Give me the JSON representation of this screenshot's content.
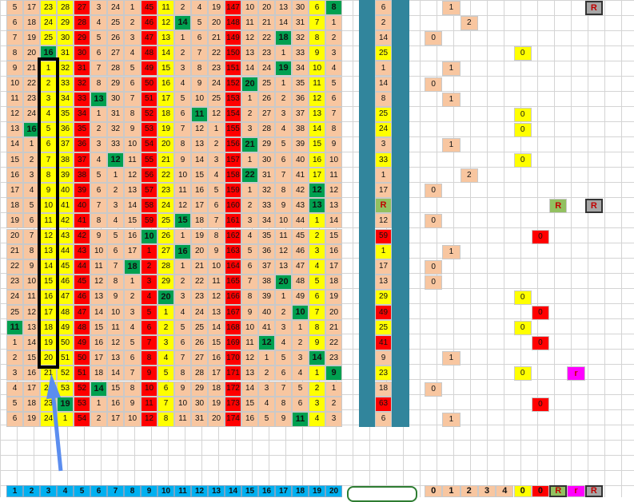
{
  "colors": {
    "peach": "#f8c6a0",
    "yellow": "#ffff00",
    "red": "#ff0000",
    "green": "#00a050",
    "olive": "#92c060",
    "magenta": "#ff00ff",
    "teal": "#31859c",
    "blue_header": "#00b0f0",
    "grey": "#a6a6a6"
  },
  "grid": {
    "rows": [
      [
        "5",
        "17",
        "23",
        "28",
        "27",
        "3",
        "24",
        "1",
        "45",
        "11",
        "2",
        "4",
        "19",
        "147",
        "10",
        "20",
        "13",
        "30",
        "6",
        "8"
      ],
      [
        "6",
        "18",
        "24",
        "29",
        "28",
        "4",
        "25",
        "2",
        "46",
        "12",
        "14",
        "5",
        "20",
        "148",
        "11",
        "21",
        "14",
        "31",
        "7",
        "1"
      ],
      [
        "7",
        "19",
        "25",
        "30",
        "29",
        "5",
        "26",
        "3",
        "47",
        "13",
        "1",
        "6",
        "21",
        "149",
        "12",
        "22",
        "18",
        "32",
        "8",
        "2"
      ],
      [
        "8",
        "20",
        "16",
        "31",
        "30",
        "6",
        "27",
        "4",
        "48",
        "14",
        "2",
        "7",
        "22",
        "150",
        "13",
        "23",
        "1",
        "33",
        "9",
        "3"
      ],
      [
        "9",
        "21",
        "1",
        "32",
        "31",
        "7",
        "28",
        "5",
        "49",
        "15",
        "3",
        "8",
        "23",
        "151",
        "14",
        "24",
        "19",
        "34",
        "10",
        "4"
      ],
      [
        "10",
        "22",
        "2",
        "33",
        "32",
        "8",
        "29",
        "6",
        "50",
        "16",
        "4",
        "9",
        "24",
        "152",
        "20",
        "25",
        "1",
        "35",
        "11",
        "5"
      ],
      [
        "11",
        "23",
        "3",
        "34",
        "33",
        "13",
        "30",
        "7",
        "51",
        "17",
        "5",
        "10",
        "25",
        "153",
        "1",
        "26",
        "2",
        "36",
        "12",
        "6"
      ],
      [
        "12",
        "24",
        "4",
        "35",
        "34",
        "1",
        "31",
        "8",
        "52",
        "18",
        "6",
        "11",
        "12",
        "154",
        "2",
        "27",
        "3",
        "37",
        "13",
        "7"
      ],
      [
        "13",
        "16",
        "5",
        "36",
        "35",
        "2",
        "32",
        "9",
        "53",
        "19",
        "7",
        "12",
        "1",
        "155",
        "3",
        "28",
        "4",
        "38",
        "14",
        "8"
      ],
      [
        "14",
        "1",
        "6",
        "37",
        "36",
        "3",
        "33",
        "10",
        "54",
        "20",
        "8",
        "13",
        "2",
        "156",
        "21",
        "29",
        "5",
        "39",
        "15",
        "9"
      ],
      [
        "15",
        "2",
        "7",
        "38",
        "37",
        "4",
        "12",
        "11",
        "55",
        "21",
        "9",
        "14",
        "3",
        "157",
        "1",
        "30",
        "6",
        "40",
        "16",
        "10"
      ],
      [
        "16",
        "3",
        "8",
        "39",
        "38",
        "5",
        "1",
        "12",
        "56",
        "22",
        "10",
        "15",
        "4",
        "158",
        "22",
        "31",
        "7",
        "41",
        "17",
        "11"
      ],
      [
        "17",
        "4",
        "9",
        "40",
        "39",
        "6",
        "2",
        "13",
        "57",
        "23",
        "11",
        "16",
        "5",
        "159",
        "1",
        "32",
        "8",
        "42",
        "12",
        "12"
      ],
      [
        "18",
        "5",
        "10",
        "41",
        "40",
        "7",
        "3",
        "14",
        "58",
        "24",
        "12",
        "17",
        "6",
        "160",
        "2",
        "33",
        "9",
        "43",
        "13",
        "13"
      ],
      [
        "19",
        "6",
        "11",
        "42",
        "41",
        "8",
        "4",
        "15",
        "59",
        "25",
        "15",
        "18",
        "7",
        "161",
        "3",
        "34",
        "10",
        "44",
        "1",
        "14"
      ],
      [
        "20",
        "7",
        "12",
        "43",
        "42",
        "9",
        "5",
        "16",
        "10",
        "26",
        "1",
        "19",
        "8",
        "162",
        "4",
        "35",
        "11",
        "45",
        "2",
        "15"
      ],
      [
        "21",
        "8",
        "13",
        "44",
        "43",
        "10",
        "6",
        "17",
        "1",
        "27",
        "16",
        "20",
        "9",
        "163",
        "5",
        "36",
        "12",
        "46",
        "3",
        "16"
      ],
      [
        "22",
        "9",
        "14",
        "45",
        "44",
        "11",
        "7",
        "18",
        "2",
        "28",
        "1",
        "21",
        "10",
        "164",
        "6",
        "37",
        "13",
        "47",
        "4",
        "17"
      ],
      [
        "23",
        "10",
        "15",
        "46",
        "45",
        "12",
        "8",
        "1",
        "3",
        "29",
        "2",
        "22",
        "11",
        "165",
        "7",
        "38",
        "20",
        "48",
        "5",
        "18"
      ],
      [
        "24",
        "11",
        "16",
        "47",
        "46",
        "13",
        "9",
        "2",
        "4",
        "20",
        "3",
        "23",
        "12",
        "166",
        "8",
        "39",
        "1",
        "49",
        "6",
        "19"
      ],
      [
        "25",
        "12",
        "17",
        "48",
        "47",
        "14",
        "10",
        "3",
        "5",
        "1",
        "4",
        "24",
        "13",
        "167",
        "9",
        "40",
        "2",
        "10",
        "7",
        "20"
      ],
      [
        "11",
        "13",
        "18",
        "49",
        "48",
        "15",
        "11",
        "4",
        "6",
        "2",
        "5",
        "25",
        "14",
        "168",
        "10",
        "41",
        "3",
        "1",
        "8",
        "21"
      ],
      [
        "1",
        "14",
        "19",
        "50",
        "49",
        "16",
        "12",
        "5",
        "7",
        "3",
        "6",
        "26",
        "15",
        "169",
        "11",
        "12",
        "4",
        "2",
        "9",
        "22"
      ],
      [
        "2",
        "15",
        "20",
        "51",
        "50",
        "17",
        "13",
        "6",
        "8",
        "4",
        "7",
        "27",
        "16",
        "170",
        "12",
        "1",
        "5",
        "3",
        "14",
        "23"
      ],
      [
        "3",
        "16",
        "21",
        "52",
        "51",
        "18",
        "14",
        "7",
        "9",
        "5",
        "8",
        "28",
        "17",
        "171",
        "13",
        "2",
        "6",
        "4",
        "1",
        "9"
      ],
      [
        "4",
        "17",
        "22",
        "53",
        "52",
        "14",
        "15",
        "8",
        "10",
        "6",
        "9",
        "29",
        "18",
        "172",
        "14",
        "3",
        "7",
        "5",
        "2",
        "1"
      ],
      [
        "5",
        "18",
        "23",
        "19",
        "53",
        "1",
        "16",
        "9",
        "11",
        "7",
        "10",
        "30",
        "19",
        "173",
        "15",
        "4",
        "8",
        "6",
        "3",
        "2"
      ],
      [
        "6",
        "19",
        "24",
        "1",
        "54",
        "2",
        "17",
        "10",
        "12",
        "8",
        "11",
        "31",
        "20",
        "174",
        "16",
        "5",
        "9",
        "11",
        "4",
        "3"
      ]
    ],
    "col_colors": [
      "peach",
      "peach",
      "yellow",
      "yellow",
      "red",
      "peach",
      "peach",
      "peach",
      "red",
      "yellow",
      "peach",
      "peach",
      "peach",
      "red",
      "peach",
      "peach",
      "peach",
      "peach",
      "yellow",
      "peach"
    ],
    "greens": [
      [
        0,
        19
      ],
      [
        1,
        10
      ],
      [
        2,
        16
      ],
      [
        3,
        2
      ],
      [
        4,
        16
      ],
      [
        5,
        14
      ],
      [
        6,
        5
      ],
      [
        7,
        11
      ],
      [
        8,
        1
      ],
      [
        9,
        14
      ],
      [
        10,
        6
      ],
      [
        11,
        14
      ],
      [
        12,
        18
      ],
      [
        13,
        18
      ],
      [
        14,
        10
      ],
      [
        15,
        8
      ],
      [
        16,
        10
      ],
      [
        17,
        7
      ],
      [
        18,
        16
      ],
      [
        19,
        9
      ],
      [
        20,
        17
      ],
      [
        21,
        0
      ],
      [
        22,
        15
      ],
      [
        23,
        18
      ],
      [
        24,
        19
      ],
      [
        25,
        5
      ],
      [
        26,
        3
      ],
      [
        27,
        17
      ]
    ]
  },
  "summary_col": [
    "6",
    "2",
    "14",
    "25",
    "1",
    "14",
    "8",
    "25",
    "24",
    "3",
    "33",
    "1",
    "17",
    "R",
    "12",
    "59",
    "1",
    "17",
    "13",
    "29",
    "49",
    "25",
    "41",
    "9",
    "23",
    "18",
    "63",
    "6"
  ],
  "summary_colors": [
    "peach",
    "peach",
    "peach",
    "yellow",
    "peach",
    "peach",
    "peach",
    "yellow",
    "yellow",
    "peach",
    "yellow",
    "peach",
    "peach",
    "olive",
    "peach",
    "red",
    "yellow",
    "peach",
    "peach",
    "yellow",
    "red",
    "yellow",
    "red",
    "peach",
    "yellow",
    "peach",
    "red",
    "peach"
  ],
  "markers": [
    {
      "row": 0,
      "col": 1,
      "text": "1",
      "color": "peach"
    },
    {
      "row": 0,
      "col": 9,
      "text": "R",
      "color": "grey"
    },
    {
      "row": 1,
      "col": 2,
      "text": "2",
      "color": "peach"
    },
    {
      "row": 2,
      "col": 0,
      "text": "0",
      "color": "peach"
    },
    {
      "row": 3,
      "col": 5,
      "text": "0",
      "color": "yellow"
    },
    {
      "row": 4,
      "col": 1,
      "text": "1",
      "color": "peach"
    },
    {
      "row": 5,
      "col": 0,
      "text": "0",
      "color": "peach"
    },
    {
      "row": 6,
      "col": 1,
      "text": "1",
      "color": "peach"
    },
    {
      "row": 7,
      "col": 5,
      "text": "0",
      "color": "yellow"
    },
    {
      "row": 8,
      "col": 5,
      "text": "0",
      "color": "yellow"
    },
    {
      "row": 9,
      "col": 1,
      "text": "1",
      "color": "peach"
    },
    {
      "row": 10,
      "col": 5,
      "text": "0",
      "color": "yellow"
    },
    {
      "row": 11,
      "col": 2,
      "text": "2",
      "color": "peach"
    },
    {
      "row": 12,
      "col": 0,
      "text": "0",
      "color": "peach"
    },
    {
      "row": 13,
      "col": 7,
      "text": "R",
      "color": "olive"
    },
    {
      "row": 13,
      "col": 9,
      "text": "R",
      "color": "grey"
    },
    {
      "row": 14,
      "col": 0,
      "text": "0",
      "color": "peach"
    },
    {
      "row": 15,
      "col": 6,
      "text": "0",
      "color": "red"
    },
    {
      "row": 16,
      "col": 1,
      "text": "1",
      "color": "peach"
    },
    {
      "row": 17,
      "col": 0,
      "text": "0",
      "color": "peach"
    },
    {
      "row": 18,
      "col": 0,
      "text": "0",
      "color": "peach"
    },
    {
      "row": 19,
      "col": 5,
      "text": "0",
      "color": "yellow"
    },
    {
      "row": 20,
      "col": 6,
      "text": "0",
      "color": "red"
    },
    {
      "row": 21,
      "col": 5,
      "text": "0",
      "color": "yellow"
    },
    {
      "row": 22,
      "col": 6,
      "text": "0",
      "color": "red"
    },
    {
      "row": 23,
      "col": 1,
      "text": "1",
      "color": "peach"
    },
    {
      "row": 24,
      "col": 5,
      "text": "0",
      "color": "yellow"
    },
    {
      "row": 24,
      "col": 8,
      "text": "r",
      "color": "magenta"
    },
    {
      "row": 25,
      "col": 0,
      "text": "0",
      "color": "peach"
    },
    {
      "row": 26,
      "col": 6,
      "text": "0",
      "color": "red"
    },
    {
      "row": 27,
      "col": 1,
      "text": "1",
      "color": "peach"
    }
  ],
  "footer": {
    "col_numbers": [
      "1",
      "2",
      "3",
      "4",
      "5",
      "6",
      "7",
      "8",
      "9",
      "10",
      "11",
      "12",
      "13",
      "14",
      "15",
      "16",
      "17",
      "18",
      "19",
      "20"
    ],
    "legend": [
      {
        "text": "0",
        "color": "peach"
      },
      {
        "text": "1",
        "color": "peach"
      },
      {
        "text": "2",
        "color": "peach"
      },
      {
        "text": "3",
        "color": "peach"
      },
      {
        "text": "4",
        "color": "peach"
      },
      {
        "text": "0",
        "color": "yellow"
      },
      {
        "text": "0",
        "color": "red"
      },
      {
        "text": "R",
        "color": "olive"
      },
      {
        "text": "r",
        "color": "magenta"
      },
      {
        "text": "R",
        "color": "grey"
      }
    ]
  }
}
